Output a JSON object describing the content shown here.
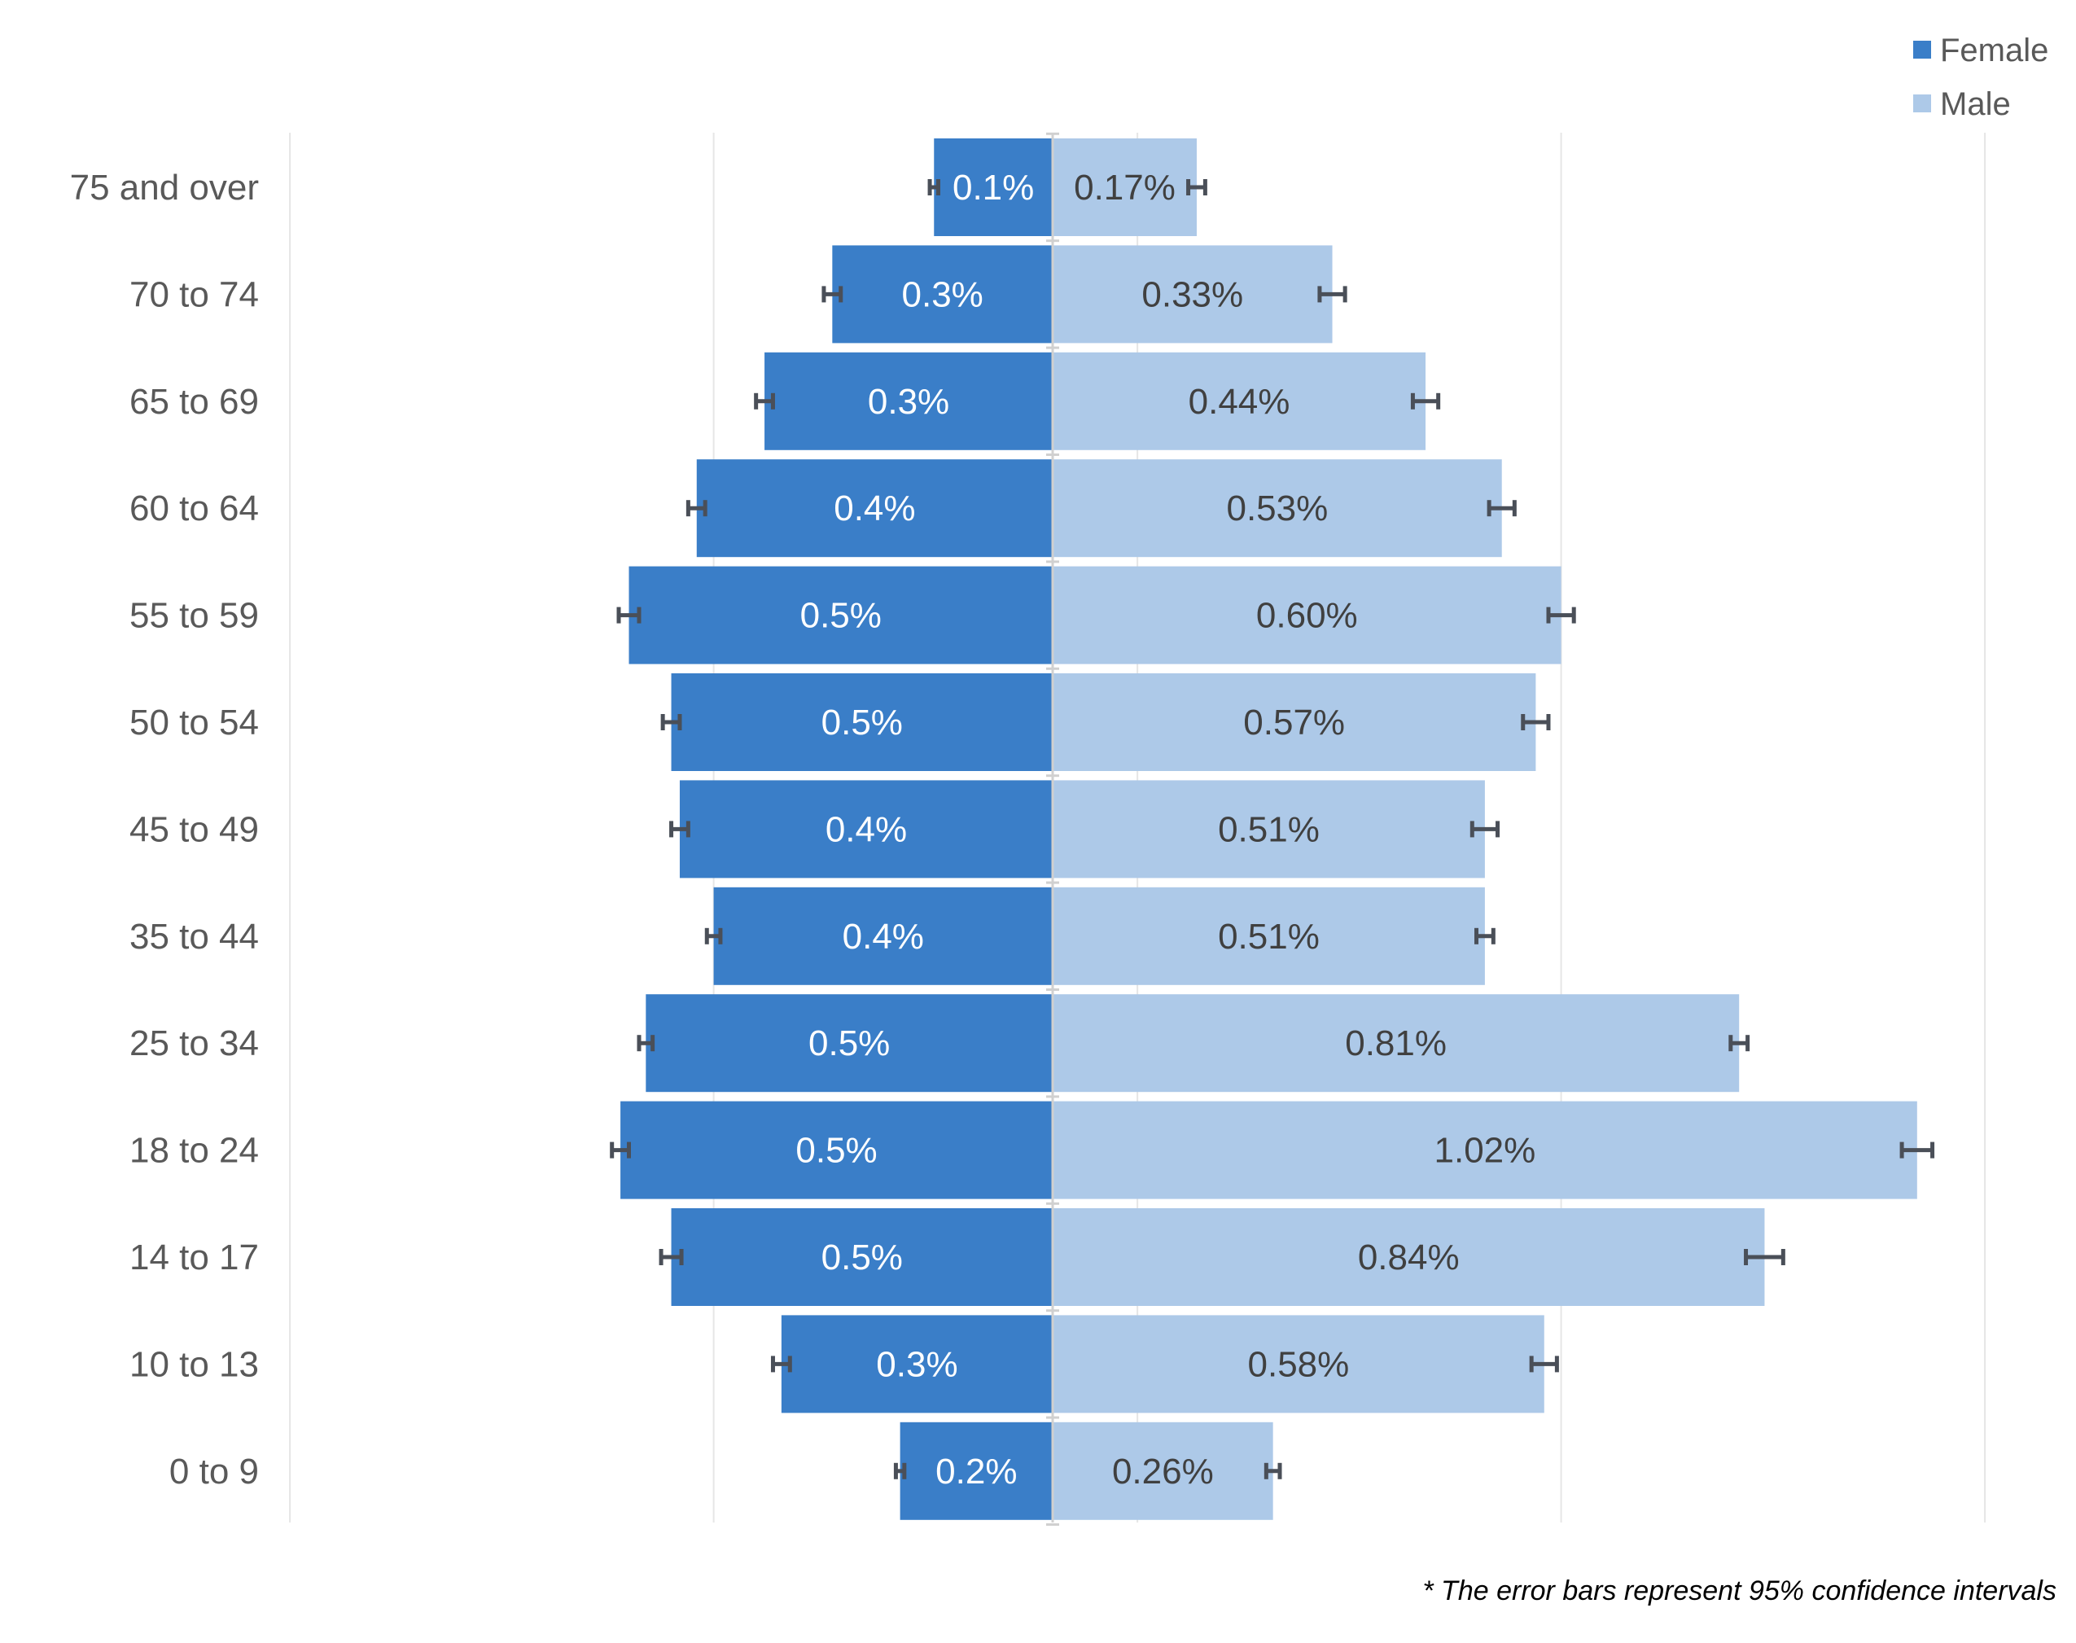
{
  "chart_data": {
    "type": "bar",
    "orientation": "horizontal",
    "layout": "population-pyramid",
    "categories": [
      "75 and over",
      "70 to 74",
      "65 to 69",
      "60 to 64",
      "55 to 59",
      "50 to 54",
      "45 to 49",
      "35 to 44",
      "25 to 34",
      "18 to 24",
      "14 to 17",
      "10 to 13",
      "0 to 9"
    ],
    "series": [
      {
        "name": "Female",
        "color": "#3a7ec8",
        "side": "left",
        "values": [
          0.14,
          0.26,
          0.34,
          0.42,
          0.5,
          0.45,
          0.44,
          0.4,
          0.48,
          0.51,
          0.45,
          0.32,
          0.18
        ],
        "labels": [
          "0.1%",
          "0.3%",
          "0.3%",
          "0.4%",
          "0.5%",
          "0.5%",
          "0.4%",
          "0.4%",
          "0.5%",
          "0.5%",
          "0.5%",
          "0.3%",
          "0.2%"
        ],
        "error": [
          0.005,
          0.01,
          0.01,
          0.01,
          0.012,
          0.01,
          0.01,
          0.008,
          0.008,
          0.01,
          0.012,
          0.01,
          0.005
        ],
        "label_color": "#ffffff"
      },
      {
        "name": "Male",
        "color": "#adc9e8",
        "side": "right",
        "values": [
          0.17,
          0.33,
          0.44,
          0.53,
          0.6,
          0.57,
          0.51,
          0.51,
          0.81,
          1.02,
          0.84,
          0.58,
          0.26
        ],
        "labels": [
          "0.17%",
          "0.33%",
          "0.44%",
          "0.53%",
          "0.60%",
          "0.57%",
          "0.51%",
          "0.51%",
          "0.81%",
          "1.02%",
          "0.84%",
          "0.58%",
          "0.26%"
        ],
        "error": [
          0.01,
          0.015,
          0.015,
          0.015,
          0.015,
          0.015,
          0.015,
          0.01,
          0.01,
          0.018,
          0.022,
          0.015,
          0.008
        ],
        "label_color": "#404040"
      }
    ],
    "xlim": [
      -0.9,
      1.1
    ],
    "gridlines": [
      -0.9,
      -0.4,
      0.1,
      0.6,
      1.1
    ],
    "grid": true,
    "legend_position": "top-right",
    "title": "",
    "xlabel": "",
    "ylabel": ""
  },
  "footnote": "* The error bars represent 95% confidence intervals",
  "colors": {
    "axis_text": "#595959",
    "grid": "#e6e6e6",
    "error_bar": "#4a4f58"
  }
}
